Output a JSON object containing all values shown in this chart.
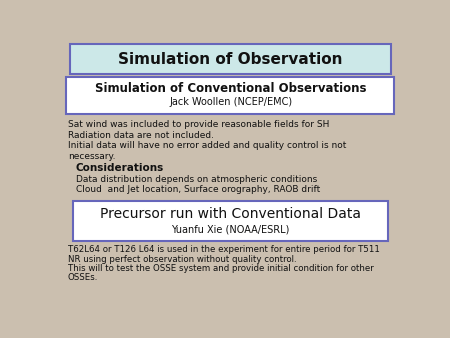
{
  "background_color": "#cbbfaf",
  "title_box": {
    "text": "Simulation of Observation",
    "bg_color": "#cce8e8",
    "border_color": "#6666bb",
    "fontsize": 11,
    "bold": true
  },
  "subtitle_box": {
    "line1": "Simulation of Conventional Observations",
    "line2": "Jack Woollen (NCEP/EMC)",
    "bg_color": "#ffffff",
    "border_color": "#6666bb",
    "line1_fontsize": 8.5,
    "line2_fontsize": 7
  },
  "body_lines": [
    "Sat wind was included to provide reasonable fields for SH",
    "Radiation data are not included.",
    "Initial data will have no error added and quality control is not\nnecessary."
  ],
  "considerations_header": "Considerations",
  "considerations_items": [
    "Data distribution depends on atmospheric conditions",
    "Cloud  and Jet location, Surface orography, RAOB drift"
  ],
  "precursor_box": {
    "line1": "Precursor run with Conventional Data",
    "line2": "Yuanfu Xie (NOAA/ESRL)",
    "bg_color": "#ffffff",
    "border_color": "#6666bb",
    "line1_fontsize": 10,
    "line2_fontsize": 7
  },
  "footer_lines": [
    "T62L64 or T126 L64 is used in the experiment for entire period for T511",
    "NR using perfect observation without quality control.",
    "This will to test the OSSE system and provide initial condition for other",
    "OSSEs."
  ],
  "body_fontsize": 6.5,
  "considerations_header_fontsize": 7.5,
  "footer_fontsize": 6.2,
  "text_color": "#111111"
}
